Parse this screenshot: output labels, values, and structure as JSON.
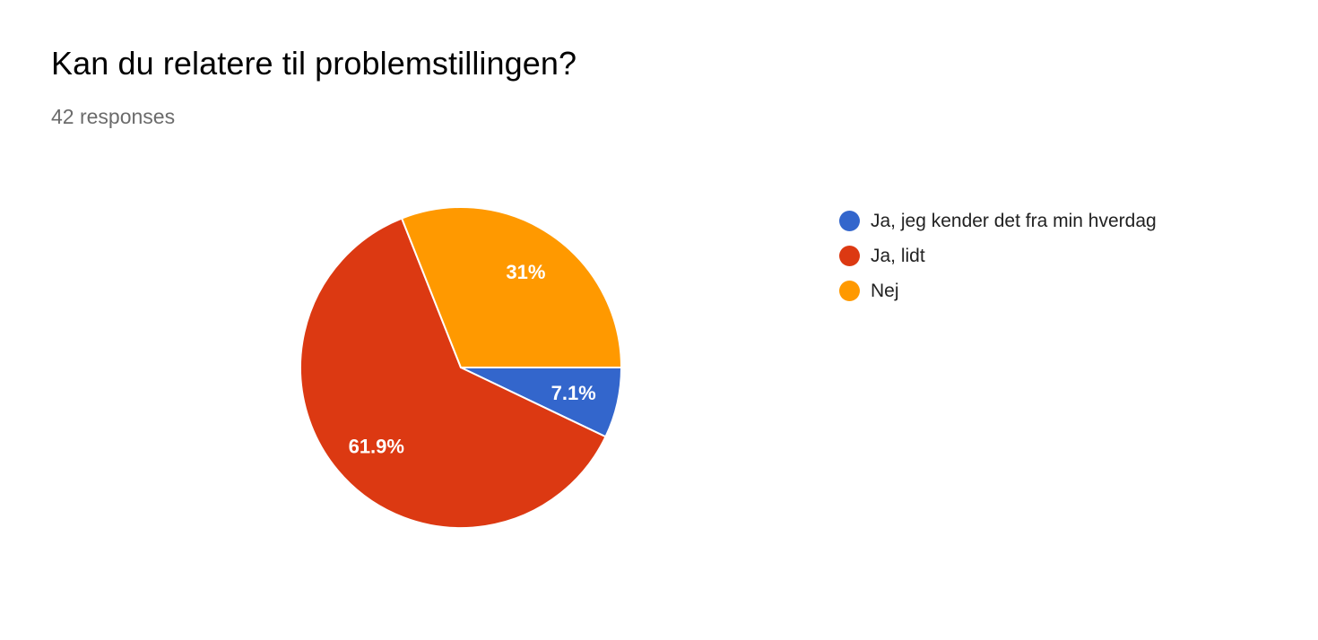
{
  "question": {
    "title": "Kan du relatere til problemstillingen?",
    "responses": "42 responses"
  },
  "chart_data": {
    "type": "pie",
    "title": "Kan du relatere til problemstillingen?",
    "slices": [
      {
        "label": "Ja, jeg kender det fra min hverdag",
        "value": 7.1,
        "display": "7.1%",
        "color": "#3366CC"
      },
      {
        "label": "Ja, lidt",
        "value": 61.9,
        "display": "61.9%",
        "color": "#DC3912"
      },
      {
        "label": "Nej",
        "value": 31,
        "display": "31%",
        "color": "#FF9900"
      }
    ],
    "legend_position": "right",
    "start_angle_deg": 0,
    "direction": "clockwise"
  }
}
